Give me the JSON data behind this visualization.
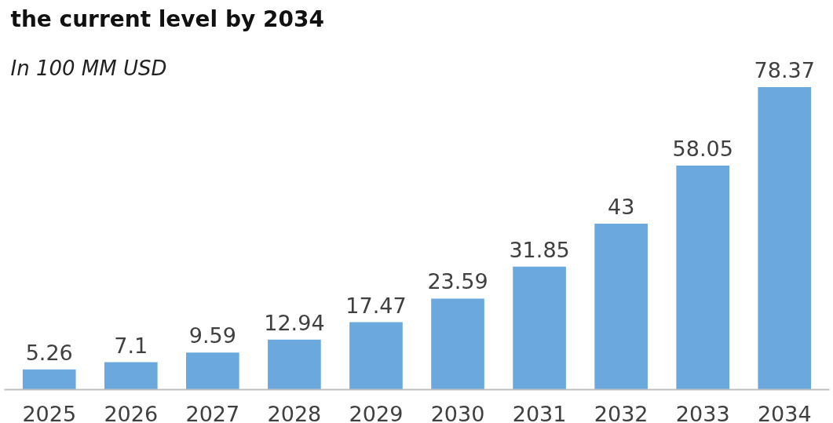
{
  "chart_data": {
    "type": "bar",
    "title": "the current level by 2034",
    "subtitle": "In 100 MM USD",
    "categories": [
      "2025",
      "2026",
      "2027",
      "2028",
      "2029",
      "2030",
      "2031",
      "2032",
      "2033",
      "2034"
    ],
    "values": [
      5.26,
      7.1,
      9.59,
      12.94,
      17.47,
      23.59,
      31.85,
      43,
      58.05,
      78.37
    ],
    "color": "#6aa8de",
    "data_labels": true,
    "grid": false
  }
}
